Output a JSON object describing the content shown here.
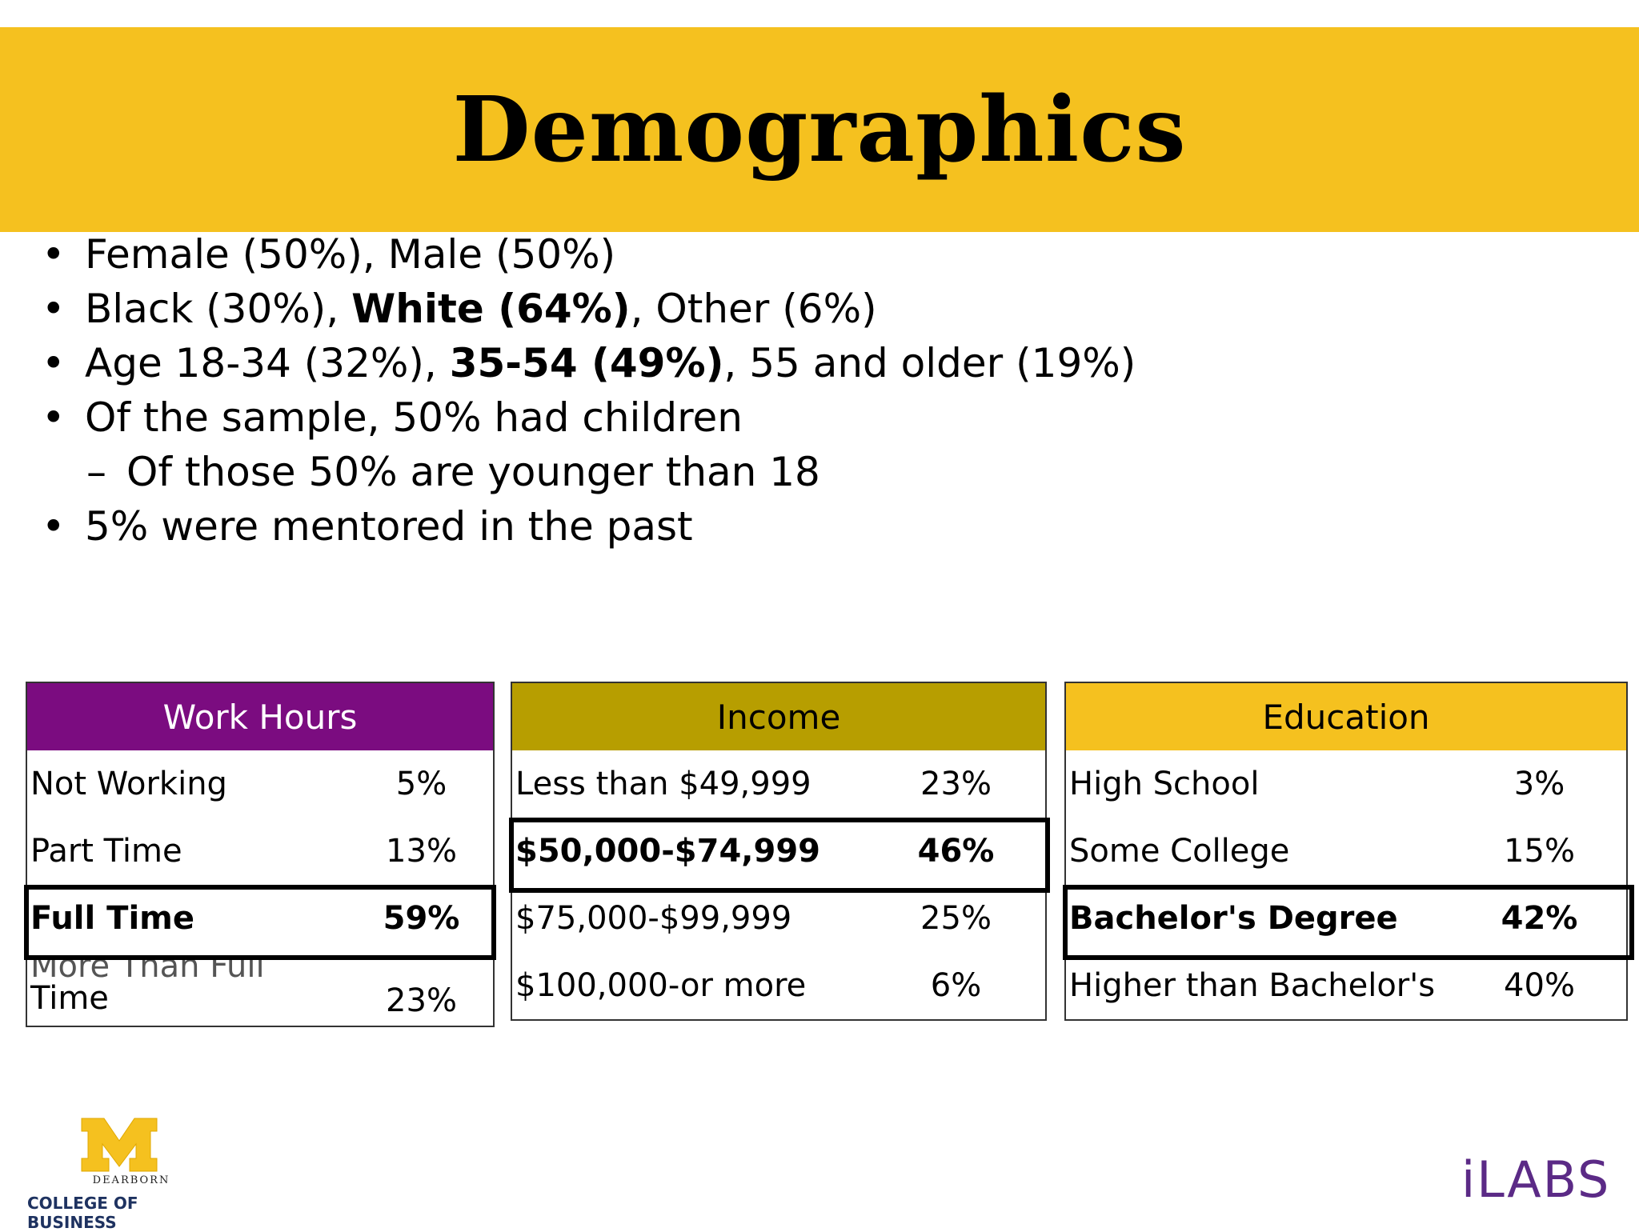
{
  "title": "Demographics",
  "bullets": {
    "gender": "Female (50%), Male (50%)",
    "race_pre": "Black (30%), ",
    "race_bold": "White (64%)",
    "race_post": ", Other (6%)",
    "age_pre": "Age 18-34 (32%), ",
    "age_bold": "35-54 (49%)",
    "age_post": ", 55 and older (19%)",
    "children": "Of the sample, 50% had children",
    "children_sub": "Of those 50% are younger than 18",
    "mentored": "5% were mentored in the past",
    "dot": "•",
    "dash": "–"
  },
  "work_hours": {
    "header": "Work Hours",
    "rows": [
      {
        "label": "Not Working",
        "value": "5%"
      },
      {
        "label": "Part Time",
        "value": "13%"
      },
      {
        "label": "Full Time",
        "value": "59%"
      },
      {
        "label_line1": "More Than Full",
        "label_line2": "Time",
        "value": "23%"
      }
    ]
  },
  "income": {
    "header": "Income",
    "rows": [
      {
        "label": "Less than $49,999",
        "value": "23%"
      },
      {
        "label": "$50,000-$74,999",
        "value": "46%"
      },
      {
        "label": "$75,000-$99,999",
        "value": "25%"
      },
      {
        "label": "$100,000-or more",
        "value": "6%"
      }
    ]
  },
  "education": {
    "header": "Education",
    "rows": [
      {
        "label": "High School",
        "value": "3%"
      },
      {
        "label": "Some College",
        "value": "15%"
      },
      {
        "label": "Bachelor's Degree",
        "value": "42%"
      },
      {
        "label": "Higher than Bachelor's",
        "value": "40%"
      }
    ]
  },
  "footer": {
    "logo_letter": "M",
    "dearborn": "DEARBORN",
    "college": "COLLEGE OF BUSINESS",
    "ilabs": "iLABS"
  },
  "colors": {
    "title_bar": "#f5c11f",
    "work_header": "#7b0c80",
    "income_header": "#b79e00",
    "education_header": "#f5c11f",
    "ilabs": "#5b2a86",
    "college": "#1e3260"
  }
}
